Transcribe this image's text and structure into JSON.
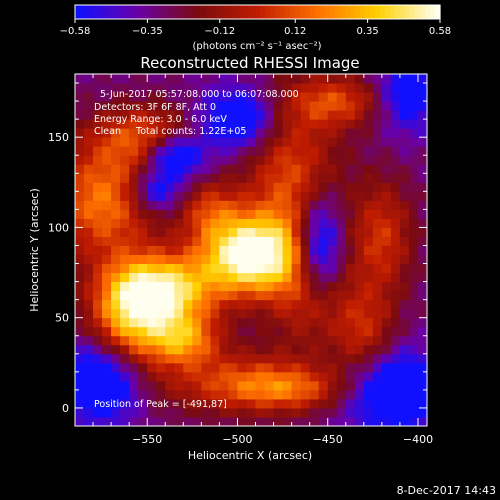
{
  "chart_data": {
    "type": "heatmap",
    "title": "Reconstructed RHESSI Image",
    "xlabel": "Heliocentric X (arcsec)",
    "ylabel": "Heliocentric Y (arcsec)",
    "xlim": [
      -590,
      -395
    ],
    "ylim": [
      -10,
      185
    ],
    "xticks": [
      -550,
      -500,
      -450,
      -400
    ],
    "xtick_labels": [
      "−550",
      "−500",
      "−450",
      "−400"
    ],
    "yticks": [
      0,
      50,
      100,
      150
    ],
    "ytick_labels": [
      "0",
      "50",
      "100",
      "150"
    ],
    "colorbar": {
      "range": [
        -0.58,
        0.58
      ],
      "ticks": [
        -0.58,
        -0.35,
        -0.12,
        0.12,
        0.35,
        0.58
      ],
      "tick_labels": [
        "−0.58",
        "−0.35",
        "−0.12",
        "0.12",
        "0.35",
        "0.58"
      ],
      "unit_label": "(photons cm⁻² s⁻¹ asec⁻²)",
      "colormap": [
        "#1010ff",
        "#6a00a8",
        "#7a0a10",
        "#c01c00",
        "#ff7000",
        "#ffd000",
        "#fffff0"
      ]
    },
    "annotations": [
      "5-Jun-2017 05:57:08.000 to 06:07:08.000",
      "Detectors: 3F 6F 8F, Att 0",
      "Energy Range: 3.0 - 6.0 keV",
      "Clean     Total counts: 1.22E+05"
    ],
    "peak_label": "Position of Peak = [-491,87]",
    "peak": {
      "x": -491,
      "y": 87
    },
    "sources": [
      {
        "x": -493,
        "y": 85,
        "sx": 19,
        "sy": 15,
        "a": 1.0
      },
      {
        "x": -540,
        "y": 65,
        "sx": 20,
        "sy": 14,
        "a": 0.82
      },
      {
        "x": -560,
        "y": 50,
        "sx": 15,
        "sy": 20,
        "a": 0.62
      },
      {
        "x": -530,
        "y": 38,
        "sx": 14,
        "sy": 10,
        "a": 0.55
      },
      {
        "x": -575,
        "y": 115,
        "sx": 20,
        "sy": 22,
        "a": 0.55
      },
      {
        "x": -550,
        "y": 150,
        "sx": 20,
        "sy": 12,
        "a": 0.45
      },
      {
        "x": -470,
        "y": 125,
        "sx": 18,
        "sy": 32,
        "a": 0.45
      },
      {
        "x": -495,
        "y": 15,
        "sx": 35,
        "sy": 12,
        "a": 0.4
      },
      {
        "x": -445,
        "y": 170,
        "sx": 18,
        "sy": 10,
        "a": 0.4
      },
      {
        "x": -420,
        "y": 95,
        "sx": 12,
        "sy": 22,
        "a": 0.38
      },
      {
        "x": -430,
        "y": 40,
        "sx": 12,
        "sy": 20,
        "a": 0.35
      },
      {
        "x": -460,
        "y": 60,
        "sx": 15,
        "sy": 18,
        "a": 0.32
      },
      {
        "x": -515,
        "y": 110,
        "sx": 12,
        "sy": 12,
        "a": 0.35
      },
      {
        "x": -470,
        "y": 10,
        "sx": 25,
        "sy": 8,
        "a": 0.3
      }
    ],
    "holes": [
      {
        "x": -535,
        "y": 140,
        "sx": 12,
        "sy": 9,
        "a": 0.6
      },
      {
        "x": -545,
        "y": 120,
        "sx": 10,
        "sy": 8,
        "a": 0.4
      },
      {
        "x": -455,
        "y": 90,
        "sx": 9,
        "sy": 20,
        "a": 0.6
      },
      {
        "x": -575,
        "y": 15,
        "sx": 15,
        "sy": 15,
        "a": 0.6
      },
      {
        "x": -415,
        "y": 10,
        "sx": 20,
        "sy": 15,
        "a": 0.6
      },
      {
        "x": -500,
        "y": 160,
        "sx": 15,
        "sy": 12,
        "a": 0.5
      },
      {
        "x": -405,
        "y": 175,
        "sx": 12,
        "sy": 15,
        "a": 0.4
      }
    ]
  },
  "footer": {
    "timestamp": "8-Dec-2017 14:43"
  }
}
